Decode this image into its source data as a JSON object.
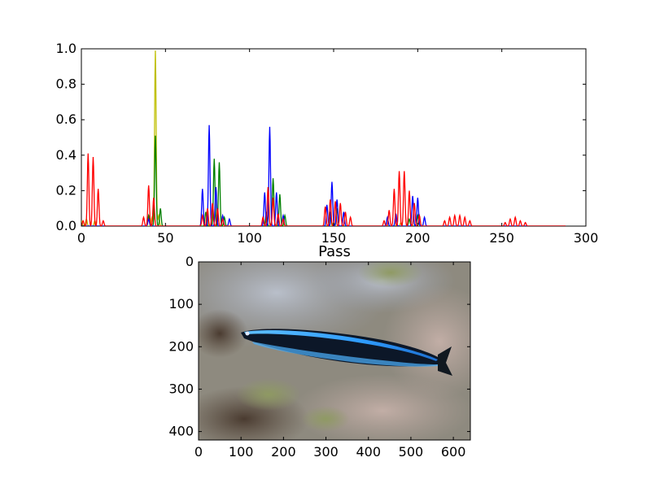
{
  "chart_data": [
    {
      "type": "line",
      "title": "",
      "xlabel": "",
      "ylabel": "",
      "xlim": [
        0,
        300
      ],
      "ylim": [
        0,
        1.0
      ],
      "x_ticks": [
        0,
        50,
        100,
        150,
        200,
        250,
        300
      ],
      "y_ticks": [
        0.0,
        0.2,
        0.4,
        0.6,
        0.8,
        1.0
      ],
      "x_tick_labels": [
        "0",
        "50",
        "100",
        "150",
        "200",
        "250",
        "300"
      ],
      "y_tick_labels": [
        "0.0",
        "0.2",
        "0.4",
        "0.6",
        "0.8",
        "1.0"
      ],
      "grid": false,
      "series": [
        {
          "color": "#bfbf00",
          "peaks": [
            [
              0,
              0.03
            ],
            [
              3,
              0.04
            ],
            [
              8,
              0.03
            ],
            [
              42,
              0.05
            ],
            [
              44,
              0.99
            ],
            [
              46,
              0.06
            ],
            [
              75,
              0.04
            ],
            [
              150,
              0.02
            ],
            [
              190,
              0.02
            ]
          ]
        },
        {
          "color": "#008000",
          "peaks": [
            [
              40,
              0.06
            ],
            [
              44,
              0.51
            ],
            [
              47,
              0.1
            ],
            [
              74,
              0.08
            ],
            [
              79,
              0.38
            ],
            [
              82,
              0.36
            ],
            [
              85,
              0.05
            ],
            [
              110,
              0.08
            ],
            [
              114,
              0.27
            ],
            [
              118,
              0.18
            ],
            [
              121,
              0.06
            ],
            [
              148,
              0.08
            ],
            [
              152,
              0.1
            ],
            [
              195,
              0.04
            ],
            [
              200,
              0.06
            ]
          ]
        },
        {
          "color": "#0000ff",
          "peaks": [
            [
              40,
              0.04
            ],
            [
              72,
              0.21
            ],
            [
              76,
              0.57
            ],
            [
              80,
              0.22
            ],
            [
              84,
              0.06
            ],
            [
              88,
              0.04
            ],
            [
              109,
              0.19
            ],
            [
              112,
              0.56
            ],
            [
              116,
              0.19
            ],
            [
              120,
              0.06
            ],
            [
              146,
              0.12
            ],
            [
              149,
              0.25
            ],
            [
              152,
              0.15
            ],
            [
              156,
              0.08
            ],
            [
              182,
              0.05
            ],
            [
              187,
              0.07
            ],
            [
              197,
              0.17
            ],
            [
              200,
              0.16
            ],
            [
              204,
              0.05
            ]
          ]
        },
        {
          "color": "#ff0000",
          "peaks": [
            [
              1,
              0.03
            ],
            [
              4,
              0.41
            ],
            [
              7,
              0.39
            ],
            [
              10,
              0.21
            ],
            [
              13,
              0.03
            ],
            [
              37,
              0.05
            ],
            [
              40,
              0.23
            ],
            [
              43,
              0.16
            ],
            [
              72,
              0.06
            ],
            [
              75,
              0.1
            ],
            [
              78,
              0.13
            ],
            [
              81,
              0.1
            ],
            [
              84,
              0.04
            ],
            [
              108,
              0.05
            ],
            [
              111,
              0.22
            ],
            [
              114,
              0.16
            ],
            [
              117,
              0.07
            ],
            [
              120,
              0.04
            ],
            [
              145,
              0.11
            ],
            [
              148,
              0.15
            ],
            [
              151,
              0.14
            ],
            [
              154,
              0.13
            ],
            [
              157,
              0.08
            ],
            [
              160,
              0.05
            ],
            [
              180,
              0.03
            ],
            [
              183,
              0.09
            ],
            [
              186,
              0.21
            ],
            [
              189,
              0.31
            ],
            [
              192,
              0.31
            ],
            [
              195,
              0.2
            ],
            [
              198,
              0.13
            ],
            [
              201,
              0.06
            ],
            [
              216,
              0.03
            ],
            [
              219,
              0.05
            ],
            [
              222,
              0.06
            ],
            [
              225,
              0.06
            ],
            [
              228,
              0.05
            ],
            [
              231,
              0.03
            ],
            [
              252,
              0.02
            ],
            [
              255,
              0.04
            ],
            [
              258,
              0.05
            ],
            [
              261,
              0.03
            ],
            [
              264,
              0.02
            ]
          ]
        }
      ]
    },
    {
      "type": "image",
      "title": "Pass",
      "xlim": [
        0,
        640
      ],
      "ylim": [
        420,
        0
      ],
      "x_ticks": [
        0,
        100,
        200,
        300,
        400,
        500,
        600
      ],
      "y_ticks": [
        0,
        100,
        200,
        300,
        400
      ],
      "x_tick_labels": [
        "0",
        "100",
        "200",
        "300",
        "400",
        "500",
        "600"
      ],
      "y_tick_labels": [
        "0",
        "100",
        "200",
        "300",
        "400"
      ],
      "subject": "blue-striped-fish-on-reef",
      "colors": {
        "reef_light": "#a7acb7",
        "reef_dark": "#6e6455",
        "reef_pink": "#b5a39c",
        "fish_body": "#0c1728",
        "fish_stripe": "#2f9dff"
      }
    }
  ]
}
